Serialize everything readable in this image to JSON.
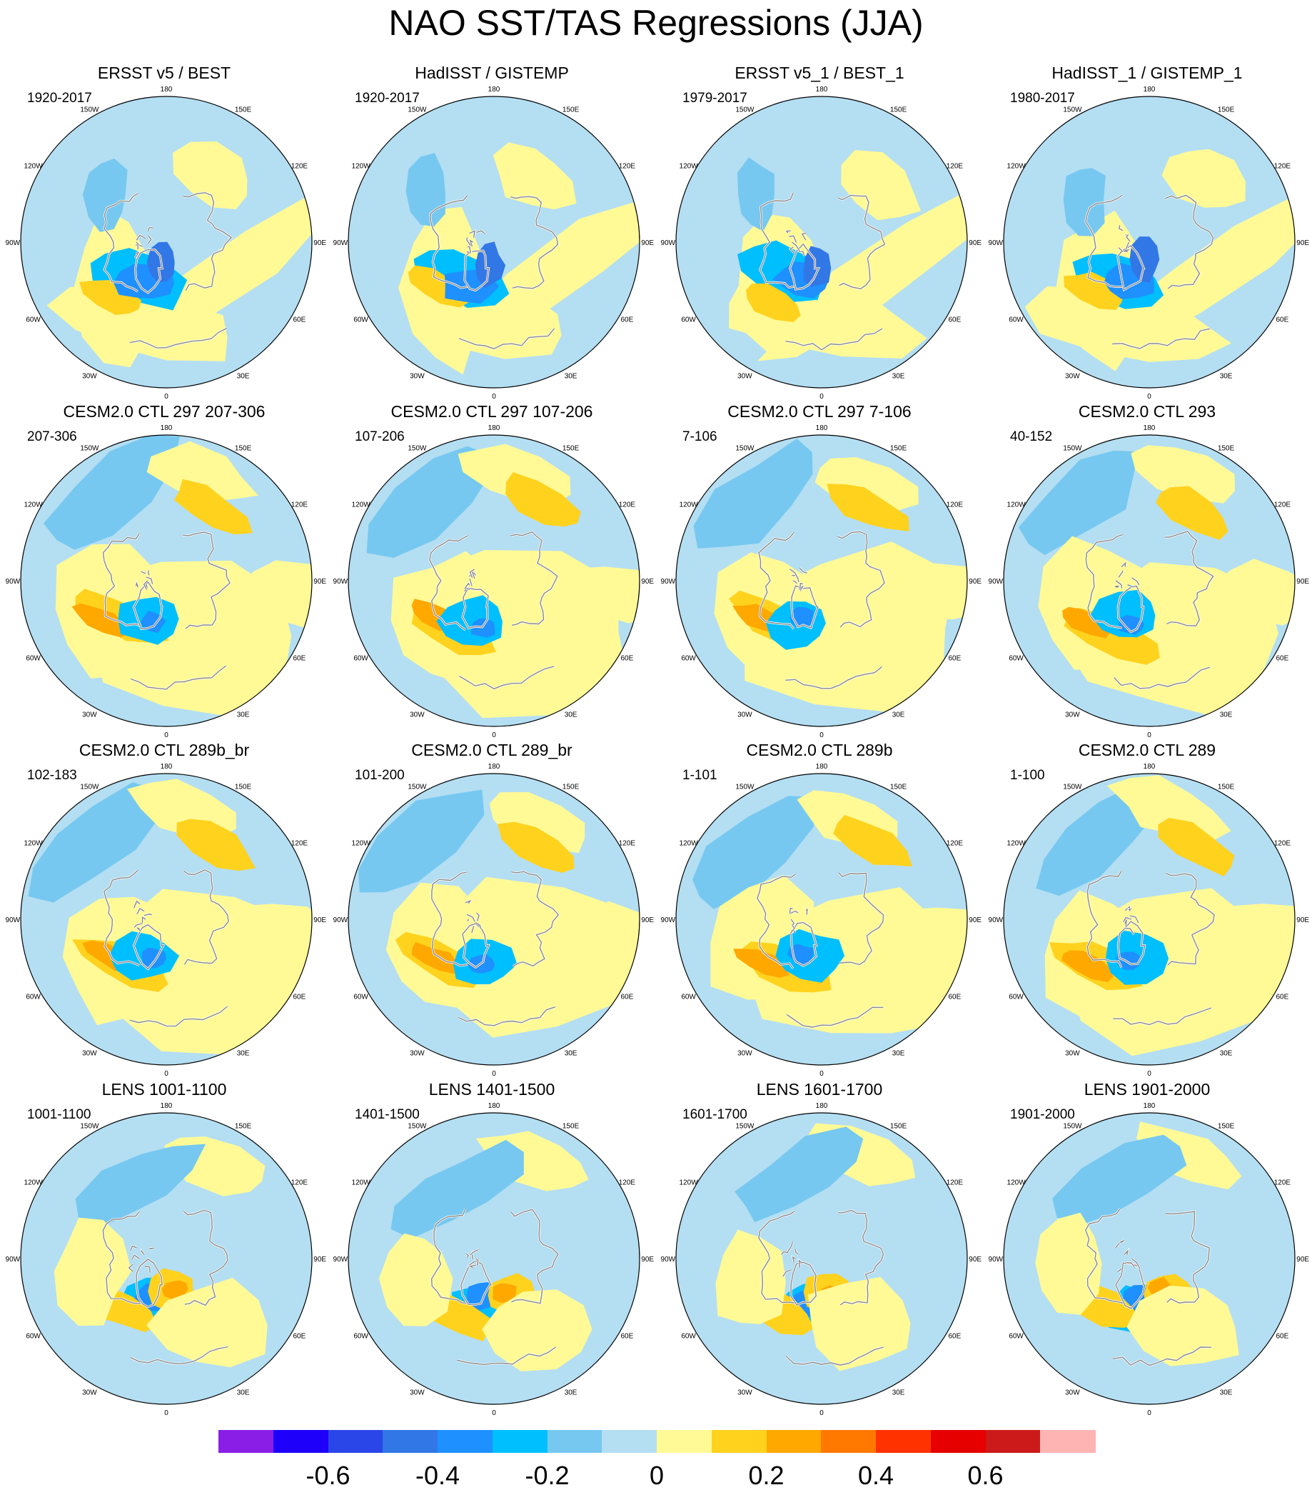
{
  "title": "NAO SST/TAS Regressions (JJA)",
  "lon_labels": [
    "180",
    "150E",
    "120E",
    "90E",
    "60E",
    "30E",
    "0",
    "30W",
    "60W",
    "90W",
    "120W",
    "150W"
  ],
  "panels": [
    {
      "title": "ERSST v5 / BEST",
      "period": "1920-2017",
      "variant": "obs"
    },
    {
      "title": "HadISST / GISTEMP",
      "period": "1920-2017",
      "variant": "obs"
    },
    {
      "title": "ERSST v5_1 / BEST_1",
      "period": "1979-2017",
      "variant": "obs"
    },
    {
      "title": "HadISST_1 / GISTEMP_1",
      "period": "1980-2017",
      "variant": "obs"
    },
    {
      "title": "CESM2.0 CTL 297 207-306",
      "period": "207-306",
      "variant": "model"
    },
    {
      "title": "CESM2.0 CTL 297 107-206",
      "period": "107-206",
      "variant": "model"
    },
    {
      "title": "CESM2.0 CTL 297 7-106",
      "period": "7-106",
      "variant": "model"
    },
    {
      "title": "CESM2.0 CTL 293",
      "period": "40-152",
      "variant": "model"
    },
    {
      "title": "CESM2.0 CTL 289b_br",
      "period": "102-183",
      "variant": "model"
    },
    {
      "title": "CESM2.0 CTL 289_br",
      "period": "101-200",
      "variant": "model"
    },
    {
      "title": "CESM2.0 CTL 289b",
      "period": "1-101",
      "variant": "model"
    },
    {
      "title": "CESM2.0 CTL 289",
      "period": "1-100",
      "variant": "model"
    },
    {
      "title": "LENS 1001-1100",
      "period": "1001-1100",
      "variant": "lens"
    },
    {
      "title": "LENS 1401-1500",
      "period": "1401-1500",
      "variant": "lens"
    },
    {
      "title": "LENS 1601-1700",
      "period": "1601-1700",
      "variant": "lens"
    },
    {
      "title": "LENS 1901-2000",
      "period": "1901-2000",
      "variant": "lens"
    }
  ],
  "colorbar": {
    "colors": [
      "#8a1ee6",
      "#1e00fa",
      "#2a46e8",
      "#3277e6",
      "#1e90ff",
      "#00bfff",
      "#76c8f0",
      "#b4def2",
      "#fffa96",
      "#ffd21e",
      "#ffa800",
      "#ff7800",
      "#ff3200",
      "#e60000",
      "#cc1a1a",
      "#ffb4b4"
    ],
    "tick_values": [
      "-0.6",
      "-0.4",
      "-0.2",
      "0",
      "0.2",
      "0.4",
      "0.6"
    ]
  },
  "palette": {
    "ocean_base": "#b4def2",
    "land_line": "#888888",
    "sea_ice": "#ffffff"
  }
}
